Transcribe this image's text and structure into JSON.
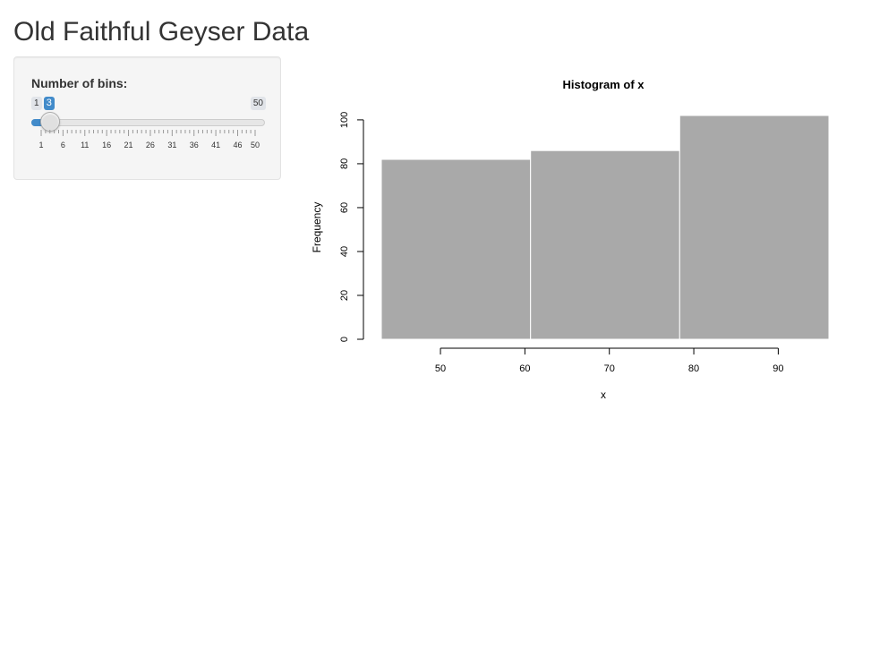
{
  "app": {
    "title": "Old Faithful Geyser Data"
  },
  "sidebar": {
    "slider": {
      "label": "Number of bins:",
      "min": 1,
      "max": 50,
      "value": 3,
      "min_label": "1",
      "max_label": "50",
      "value_label": "3",
      "tick_labels": [
        "1",
        "6",
        "11",
        "16",
        "21",
        "26",
        "31",
        "36",
        "41",
        "46",
        "50"
      ],
      "accent_color": "#428bca"
    }
  },
  "chart_data": {
    "type": "bar",
    "title": "Histogram of x",
    "xlabel": "x",
    "ylabel": "Frequency",
    "bins": [
      {
        "from": 43,
        "to": 60.67,
        "count": 82
      },
      {
        "from": 60.67,
        "to": 78.33,
        "count": 86
      },
      {
        "from": 78.33,
        "to": 96,
        "count": 102
      }
    ],
    "xlim": [
      43,
      96
    ],
    "ylim": [
      0,
      102
    ],
    "x_ticks": [
      50,
      60,
      70,
      80,
      90
    ],
    "y_ticks": [
      0,
      20,
      40,
      60,
      80,
      100
    ],
    "bar_color": "#a9a9a9",
    "grid": false
  }
}
